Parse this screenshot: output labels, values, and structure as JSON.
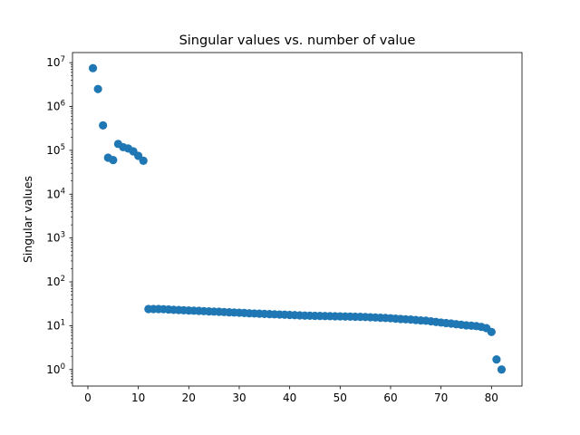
{
  "chart_data": {
    "type": "scatter",
    "title": "Singular values vs. number of value",
    "xlabel": "",
    "ylabel": "Singular values",
    "yscale": "log",
    "xlim": [
      -3.05,
      86.05
    ],
    "ylim": [
      0.42,
      17000000
    ],
    "grid": false,
    "color": "#1f77b4",
    "x_ticks": [
      {
        "value": 0,
        "label": "0"
      },
      {
        "value": 10,
        "label": "10"
      },
      {
        "value": 20,
        "label": "20"
      },
      {
        "value": 30,
        "label": "30"
      },
      {
        "value": 40,
        "label": "40"
      },
      {
        "value": 50,
        "label": "50"
      },
      {
        "value": 60,
        "label": "60"
      },
      {
        "value": 70,
        "label": "70"
      },
      {
        "value": 80,
        "label": "80"
      }
    ],
    "y_ticks": [
      {
        "value": 1,
        "base": "10",
        "exp": "0"
      },
      {
        "value": 10,
        "base": "10",
        "exp": "1"
      },
      {
        "value": 100,
        "base": "10",
        "exp": "2"
      },
      {
        "value": 1000,
        "base": "10",
        "exp": "3"
      },
      {
        "value": 10000,
        "base": "10",
        "exp": "4"
      },
      {
        "value": 100000,
        "base": "10",
        "exp": "5"
      },
      {
        "value": 1000000,
        "base": "10",
        "exp": "6"
      },
      {
        "value": 10000000,
        "base": "10",
        "exp": "7"
      }
    ],
    "x": [
      1,
      2,
      3,
      4,
      5,
      6,
      7,
      8,
      9,
      10,
      11,
      12,
      13,
      14,
      15,
      16,
      17,
      18,
      19,
      20,
      21,
      22,
      23,
      24,
      25,
      26,
      27,
      28,
      29,
      30,
      31,
      32,
      33,
      34,
      35,
      36,
      37,
      38,
      39,
      40,
      41,
      42,
      43,
      44,
      45,
      46,
      47,
      48,
      49,
      50,
      51,
      52,
      53,
      54,
      55,
      56,
      57,
      58,
      59,
      60,
      61,
      62,
      63,
      64,
      65,
      66,
      67,
      68,
      69,
      70,
      71,
      72,
      73,
      74,
      75,
      76,
      77,
      78,
      79,
      80,
      81,
      82
    ],
    "y": [
      7500000,
      2500000,
      370000,
      68000,
      60000,
      140000,
      118000,
      110000,
      95000,
      75000,
      58000,
      24,
      24,
      24,
      23.8,
      23.5,
      23,
      22.8,
      22.5,
      22.2,
      22,
      21.8,
      21.5,
      21.2,
      21,
      20.8,
      20.5,
      20.2,
      20,
      19.8,
      19.5,
      19.2,
      19,
      18.8,
      18.6,
      18.4,
      18.2,
      18,
      17.8,
      17.6,
      17.4,
      17.2,
      17,
      16.9,
      16.8,
      16.7,
      16.6,
      16.5,
      16.4,
      16.3,
      16.2,
      16.1,
      16,
      15.9,
      15.8,
      15.6,
      15.4,
      15.2,
      15,
      14.8,
      14.5,
      14.2,
      14,
      13.8,
      13.5,
      13.2,
      13,
      12.6,
      12.2,
      11.8,
      11.5,
      11.2,
      10.8,
      10.5,
      10.2,
      10,
      9.8,
      9.4,
      8.8,
      7.2,
      1.7,
      1.0
    ]
  }
}
